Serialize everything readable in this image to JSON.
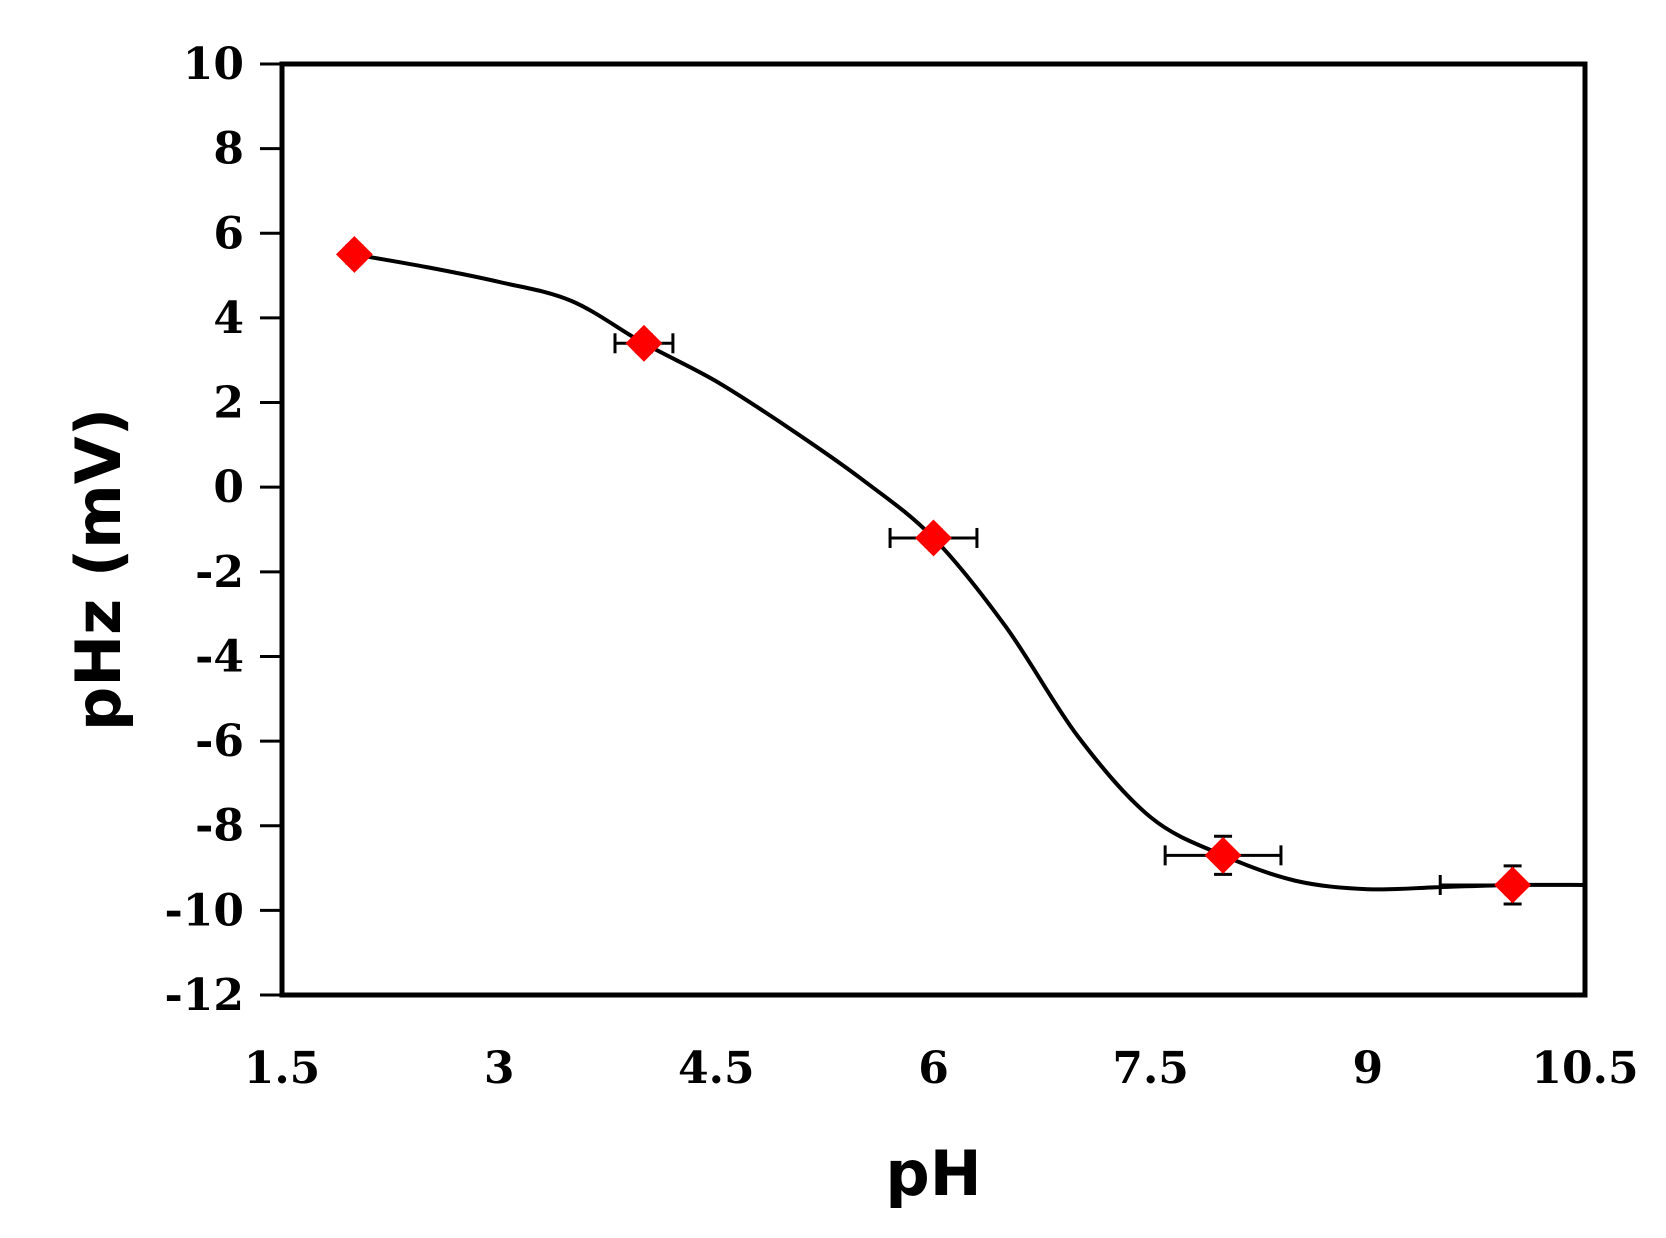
{
  "chart_data": {
    "type": "scatter",
    "title": "",
    "xlabel": "pH",
    "ylabel": "pHz (mV)",
    "xlim": [
      1.5,
      10.5
    ],
    "ylim": [
      -12,
      10
    ],
    "x_ticks": [
      1.5,
      3,
      4.5,
      6,
      7.5,
      9,
      10.5
    ],
    "x_tick_labels": [
      "1.5",
      "3",
      "4.5",
      "6",
      "7.5",
      "9",
      "10.5"
    ],
    "y_ticks": [
      10,
      8,
      6,
      4,
      2,
      0,
      -2,
      -4,
      -6,
      -8,
      -10,
      -12
    ],
    "y_tick_labels": [
      "10",
      "8",
      "6",
      "4",
      "2",
      "0",
      "-2",
      "-4",
      "-6",
      "-8",
      "-10",
      "-12"
    ],
    "grid": false,
    "marker_color": "#ff0000",
    "line_color": "#000000",
    "series": [
      {
        "points": [
          {
            "x": 2.0,
            "y": 5.5,
            "x_err": 0.05,
            "y_err": 0.2
          },
          {
            "x": 4.0,
            "y": 3.4,
            "x_err": 0.2,
            "y_err": 0.2
          },
          {
            "x": 6.0,
            "y": -1.2,
            "x_err": 0.3,
            "y_err": 0.2
          },
          {
            "x": 8.0,
            "y": -8.7,
            "x_err": 0.4,
            "y_err": 0.45
          },
          {
            "x": 10.0,
            "y": -9.4,
            "x_err": 0.5,
            "y_err": 0.45
          }
        ]
      }
    ],
    "trend_curve": [
      [
        2.0,
        5.5
      ],
      [
        2.5,
        5.2
      ],
      [
        3.0,
        4.85
      ],
      [
        3.5,
        4.4
      ],
      [
        4.0,
        3.4
      ],
      [
        4.5,
        2.5
      ],
      [
        5.0,
        1.4
      ],
      [
        5.5,
        0.2
      ],
      [
        6.0,
        -1.2
      ],
      [
        6.5,
        -3.3
      ],
      [
        7.0,
        -5.9
      ],
      [
        7.5,
        -7.8
      ],
      [
        8.0,
        -8.7
      ],
      [
        8.5,
        -9.3
      ],
      [
        9.0,
        -9.5
      ],
      [
        9.5,
        -9.45
      ],
      [
        10.0,
        -9.4
      ],
      [
        10.5,
        -9.4
      ]
    ]
  }
}
